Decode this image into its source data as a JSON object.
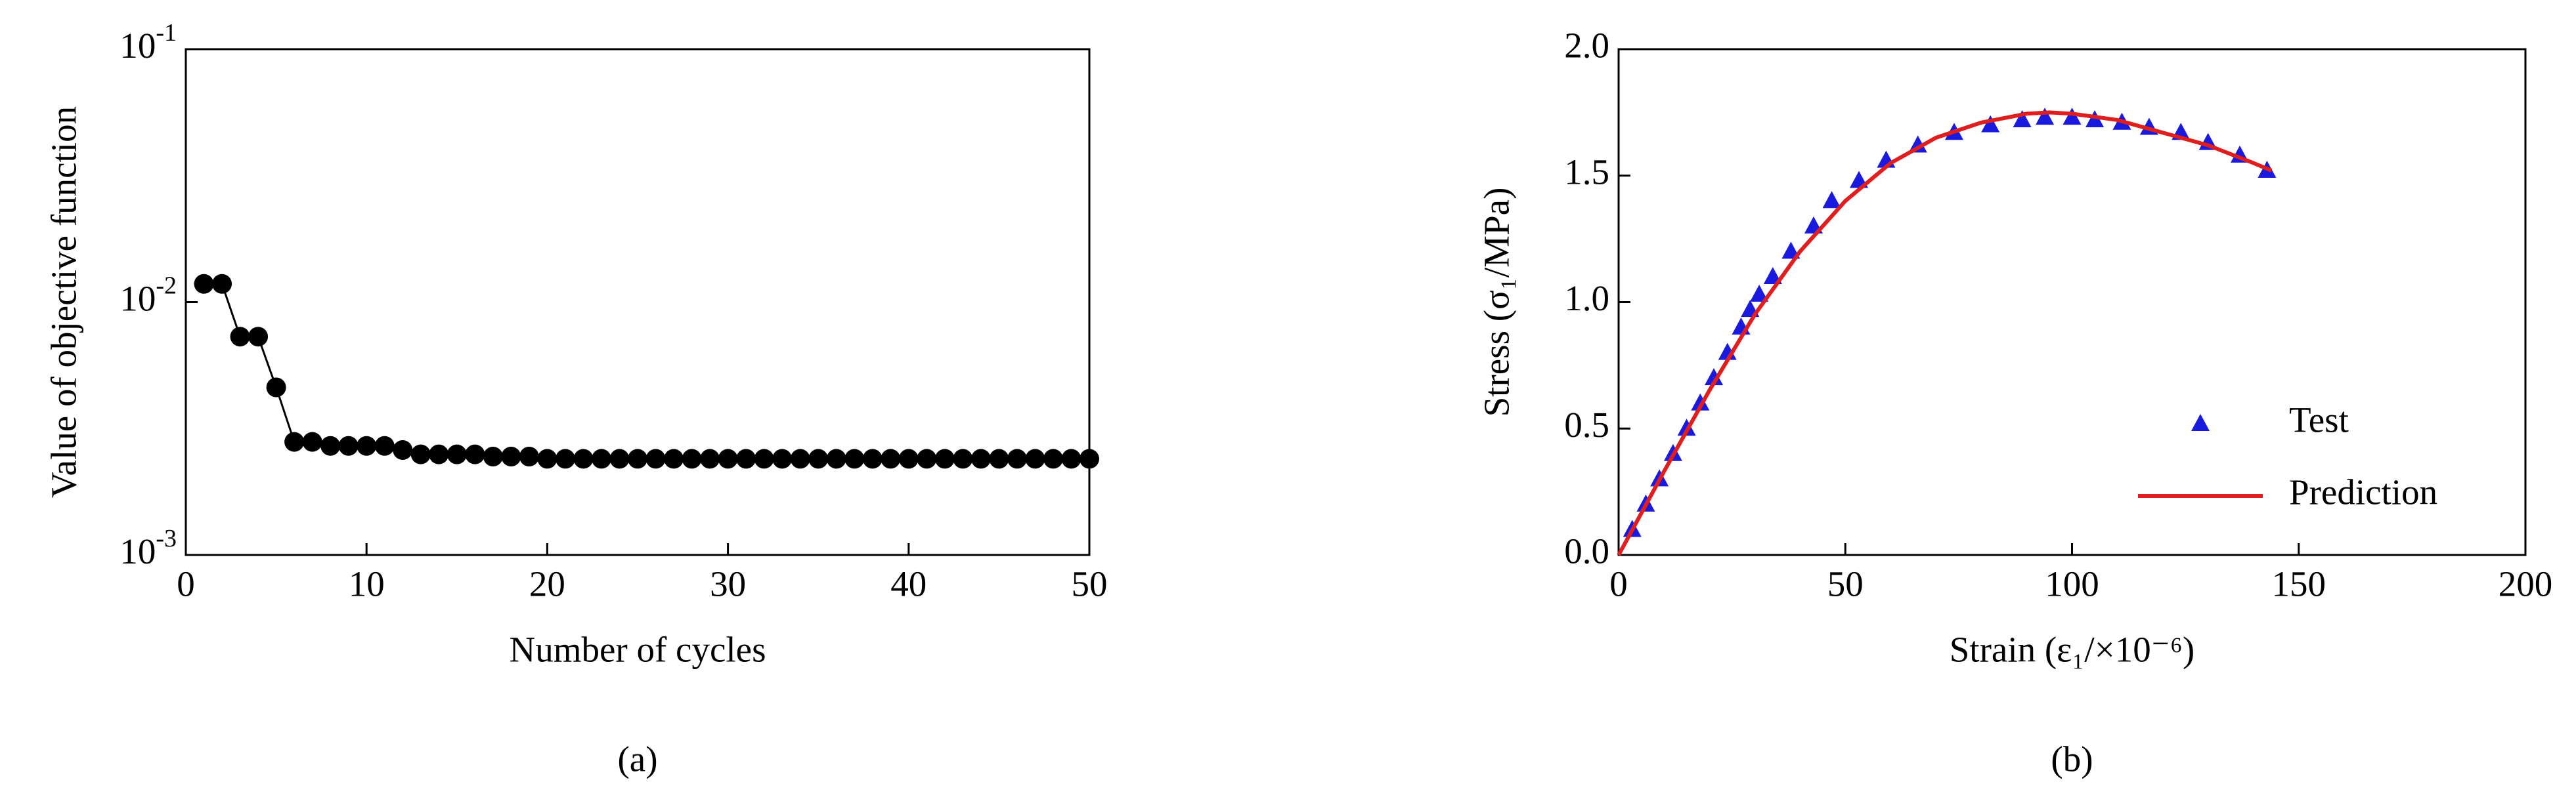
{
  "chart_data": [
    {
      "type": "line",
      "mode": "lines+markers",
      "color": "#000000",
      "caption": "(a)",
      "x_label": "Number of cycles",
      "y_label": "Value of objective function",
      "x": [
        1,
        2,
        3,
        4,
        5,
        6,
        7,
        8,
        9,
        10,
        11,
        12,
        13,
        14,
        15,
        16,
        17,
        18,
        19,
        20,
        21,
        22,
        23,
        24,
        25,
        26,
        27,
        28,
        29,
        30,
        31,
        32,
        33,
        34,
        35,
        36,
        37,
        38,
        39,
        40,
        41,
        42,
        43,
        44,
        45,
        46,
        47,
        48,
        49,
        50
      ],
      "values": [
        0.0118,
        0.0118,
        0.0073,
        0.0073,
        0.0046,
        0.0028,
        0.0028,
        0.0027,
        0.0027,
        0.0027,
        0.0027,
        0.0026,
        0.0025,
        0.0025,
        0.0025,
        0.0025,
        0.00245,
        0.00245,
        0.00245,
        0.0024,
        0.0024,
        0.0024,
        0.0024,
        0.0024,
        0.0024,
        0.0024,
        0.0024,
        0.0024,
        0.0024,
        0.0024,
        0.0024,
        0.0024,
        0.0024,
        0.0024,
        0.0024,
        0.0024,
        0.0024,
        0.0024,
        0.0024,
        0.0024,
        0.0024,
        0.0024,
        0.0024,
        0.0024,
        0.0024,
        0.0024,
        0.0024,
        0.0024,
        0.0024,
        0.0024
      ],
      "xlim": [
        0,
        50
      ],
      "xticks": [
        0,
        10,
        20,
        30,
        40,
        50
      ],
      "ylim": [
        0.001,
        0.1
      ],
      "ylog": true,
      "yticks": [
        {
          "value": 0.001,
          "label": "10-3"
        },
        {
          "value": 0.01,
          "label": "10-2"
        },
        {
          "value": 0.1,
          "label": "10-1"
        }
      ]
    },
    {
      "type": "scatter",
      "caption": "(b)",
      "legend": "lower right",
      "x_label": "Strain (ε₁/×10⁻⁶)",
      "y_label": "Stress (σ₁/MPa)",
      "xlim": [
        0,
        200
      ],
      "xticks": [
        0,
        50,
        100,
        150,
        200
      ],
      "ylim": [
        0,
        2
      ],
      "yticks": [
        {
          "value": 0,
          "label": "0.0"
        },
        {
          "value": 0.5,
          "label": "0.5"
        },
        {
          "value": 1,
          "label": "1.0"
        },
        {
          "value": 1.5,
          "label": "1.5"
        },
        {
          "value": 2,
          "label": "2.0"
        }
      ],
      "series": [
        {
          "name": "Test",
          "color": "#1a1adf",
          "mode": "markers",
          "x": [
            3,
            6,
            9,
            12,
            15,
            18,
            21,
            24,
            27,
            29,
            31,
            34,
            38,
            43,
            47,
            53,
            59,
            66,
            74,
            82,
            89,
            94,
            100,
            105,
            111,
            117,
            124,
            130,
            137,
            143
          ],
          "values": [
            0.1,
            0.2,
            0.3,
            0.4,
            0.5,
            0.6,
            0.7,
            0.8,
            0.9,
            0.97,
            1.03,
            1.1,
            1.2,
            1.3,
            1.4,
            1.48,
            1.56,
            1.62,
            1.67,
            1.7,
            1.72,
            1.73,
            1.73,
            1.72,
            1.71,
            1.69,
            1.67,
            1.63,
            1.58,
            1.52
          ]
        },
        {
          "name": "Prediction",
          "color": "#e01e1e",
          "mode": "lines",
          "x": [
            0,
            10,
            20,
            30,
            40,
            50,
            60,
            70,
            80,
            90,
            95,
            100,
            110,
            120,
            130,
            140,
            144
          ],
          "values": [
            0,
            0.33,
            0.65,
            0.95,
            1.2,
            1.4,
            1.55,
            1.65,
            1.71,
            1.745,
            1.75,
            1.745,
            1.72,
            1.67,
            1.62,
            1.55,
            1.52
          ]
        }
      ]
    }
  ]
}
